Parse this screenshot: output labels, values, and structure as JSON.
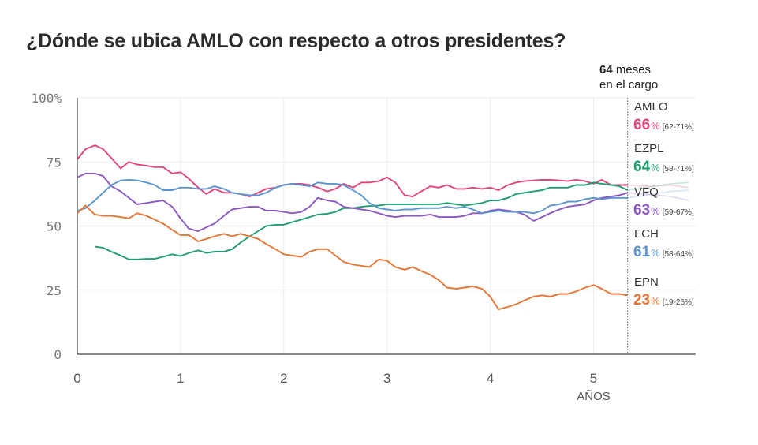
{
  "title": "¿Dónde se ubica AMLO con respecto a otros presidentes?",
  "months_label": {
    "number": "64",
    "line1": "meses",
    "line2": "en el cargo"
  },
  "chart_data": {
    "type": "line",
    "title": "¿Dónde se ubica AMLO con respecto a otros presidentes?",
    "xlabel": "AÑOS",
    "ylabel": "",
    "xlim": [
      0,
      6
    ],
    "ylim": [
      0,
      100
    ],
    "x_ticks": [
      0,
      1,
      2,
      3,
      4,
      5
    ],
    "y_ticks": [
      0,
      25,
      50,
      75,
      100
    ],
    "y_tick_labels": [
      "0",
      "25",
      "50",
      "75",
      "100%"
    ],
    "current_marker_x": 5.33,
    "grid": true,
    "legend": "right",
    "series": [
      {
        "name": "AMLO",
        "color": "#e0457b",
        "value": "66",
        "range": "[62-71%]",
        "x": [
          0,
          0.08,
          0.17,
          0.25,
          0.33,
          0.42,
          0.5,
          0.58,
          0.67,
          0.75,
          0.83,
          0.92,
          1.0,
          1.08,
          1.17,
          1.25,
          1.33,
          1.42,
          1.5,
          1.58,
          1.67,
          1.75,
          1.83,
          1.92,
          2.0,
          2.08,
          2.17,
          2.25,
          2.33,
          2.42,
          2.5,
          2.58,
          2.67,
          2.75,
          2.83,
          2.92,
          3.0,
          3.08,
          3.17,
          3.25,
          3.33,
          3.42,
          3.5,
          3.58,
          3.67,
          3.75,
          3.83,
          3.92,
          4.0,
          4.08,
          4.17,
          4.25,
          4.33,
          4.42,
          4.5,
          4.58,
          4.67,
          4.75,
          4.83,
          4.92,
          5.0,
          5.08,
          5.17,
          5.25,
          5.33
        ],
        "y": [
          76,
          80,
          81.5,
          80,
          76.5,
          72.5,
          75,
          74,
          73.5,
          73,
          73,
          70.5,
          71,
          68.5,
          65,
          62.5,
          64.5,
          63,
          63,
          62.5,
          61.5,
          63,
          64.5,
          65,
          66,
          66.5,
          66.5,
          66,
          65,
          63.5,
          64.5,
          66.5,
          65,
          67,
          67,
          67.5,
          69,
          67,
          62,
          61.5,
          63.5,
          65.5,
          65,
          66,
          64.5,
          64.5,
          65,
          64.5,
          65,
          64,
          66,
          67,
          67.5,
          67.8,
          68,
          68,
          67.8,
          67.5,
          68,
          67.5,
          66.5,
          68,
          66,
          66,
          66
        ]
      },
      {
        "name": "EZPL",
        "color": "#1f9e6e",
        "value": "64",
        "range": "[58-71%]",
        "x": [
          0.17,
          0.25,
          0.33,
          0.42,
          0.5,
          0.58,
          0.67,
          0.75,
          0.83,
          0.92,
          1.0,
          1.08,
          1.17,
          1.25,
          1.33,
          1.42,
          1.5,
          1.58,
          1.67,
          1.75,
          1.83,
          1.92,
          2.0,
          2.08,
          2.17,
          2.25,
          2.33,
          2.42,
          2.5,
          2.58,
          2.67,
          2.75,
          2.83,
          2.92,
          3.0,
          3.08,
          3.17,
          3.25,
          3.33,
          3.42,
          3.5,
          3.58,
          3.67,
          3.75,
          3.83,
          3.92,
          4.0,
          4.08,
          4.17,
          4.25,
          4.33,
          4.42,
          4.5,
          4.58,
          4.67,
          4.75,
          4.83,
          4.92,
          5.0,
          5.08,
          5.17,
          5.25,
          5.33
        ],
        "y": [
          42,
          41.5,
          40,
          38.5,
          37,
          37,
          37.2,
          37.2,
          38,
          39,
          38.3,
          39.5,
          40.5,
          39.5,
          40,
          40,
          41,
          43.5,
          46,
          48,
          50,
          50.5,
          50.5,
          51.5,
          52.5,
          53.5,
          54.5,
          54.8,
          55.5,
          57,
          57,
          57.5,
          57.8,
          58,
          58.5,
          58.5,
          58.5,
          58.5,
          58.5,
          58.5,
          58.5,
          59,
          58.5,
          58,
          58.5,
          59,
          60,
          60,
          61,
          62.5,
          63,
          63.5,
          64,
          65,
          65,
          65,
          66,
          66,
          67,
          66.5,
          66,
          65.5,
          64
        ]
      },
      {
        "name": "VFQ",
        "color": "#8b58c2",
        "value": "63",
        "range": "[59-67%]",
        "x": [
          0,
          0.08,
          0.17,
          0.25,
          0.33,
          0.42,
          0.5,
          0.58,
          0.67,
          0.75,
          0.83,
          0.92,
          1.0,
          1.08,
          1.17,
          1.25,
          1.33,
          1.42,
          1.5,
          1.58,
          1.67,
          1.75,
          1.83,
          1.92,
          2.0,
          2.08,
          2.17,
          2.25,
          2.33,
          2.42,
          2.5,
          2.58,
          2.67,
          2.75,
          2.83,
          2.92,
          3.0,
          3.08,
          3.17,
          3.25,
          3.33,
          3.42,
          3.5,
          3.58,
          3.67,
          3.75,
          3.83,
          3.92,
          4.0,
          4.08,
          4.17,
          4.25,
          4.33,
          4.42,
          4.5,
          4.58,
          4.67,
          4.75,
          4.83,
          4.92,
          5.0,
          5.08,
          5.17,
          5.25,
          5.33
        ],
        "y": [
          69,
          70.5,
          70.5,
          69.5,
          65.5,
          63.5,
          61,
          58.5,
          59,
          59.5,
          60,
          57.5,
          53,
          49,
          48,
          49.5,
          51,
          54,
          56.5,
          57,
          57.5,
          57.5,
          56,
          56,
          55.5,
          55,
          55.5,
          57.5,
          61,
          60,
          59.5,
          57.5,
          57,
          56.5,
          56,
          55,
          54,
          53.5,
          54,
          54,
          54,
          54.5,
          53.5,
          53.5,
          53.5,
          54,
          55,
          55,
          56,
          56.5,
          56,
          55.5,
          54.5,
          52,
          53.5,
          55,
          56.5,
          57.5,
          58,
          58.5,
          60,
          61,
          61.5,
          62,
          63
        ]
      },
      {
        "name": "FCH",
        "color": "#5b95d0",
        "value": "61",
        "range": "[58-64%]",
        "x": [
          0,
          0.08,
          0.17,
          0.25,
          0.33,
          0.42,
          0.5,
          0.58,
          0.67,
          0.75,
          0.83,
          0.92,
          1.0,
          1.08,
          1.17,
          1.25,
          1.33,
          1.42,
          1.5,
          1.58,
          1.67,
          1.75,
          1.83,
          1.92,
          2.0,
          2.08,
          2.17,
          2.25,
          2.33,
          2.42,
          2.5,
          2.58,
          2.67,
          2.75,
          2.83,
          2.92,
          3.0,
          3.08,
          3.17,
          3.25,
          3.33,
          3.42,
          3.5,
          3.58,
          3.67,
          3.75,
          3.83,
          3.92,
          4.0,
          4.08,
          4.17,
          4.25,
          4.33,
          4.42,
          4.5,
          4.58,
          4.67,
          4.75,
          4.83,
          4.92,
          5.0,
          5.08,
          5.17,
          5.25,
          5.33
        ],
        "y": [
          56,
          57,
          60,
          63,
          66,
          67.8,
          68,
          67.8,
          67,
          66,
          64,
          64,
          65,
          65,
          64.5,
          64.5,
          65.5,
          64.5,
          63,
          62.5,
          62,
          62,
          63,
          65,
          66,
          66.5,
          66,
          65.5,
          67,
          66.5,
          66.5,
          66,
          64,
          62,
          59,
          57,
          56.5,
          56,
          56.5,
          56.5,
          57,
          57,
          57,
          57.5,
          57,
          57.5,
          56.5,
          55,
          55.5,
          56,
          55.5,
          55.5,
          55.5,
          55,
          56,
          58,
          58.5,
          59.5,
          59.5,
          60.5,
          61,
          60.5,
          61,
          61,
          61
        ]
      },
      {
        "name": "EPN",
        "color": "#e67535",
        "value": "23",
        "range": "[19-26%]",
        "x": [
          0,
          0.08,
          0.17,
          0.25,
          0.33,
          0.42,
          0.5,
          0.58,
          0.67,
          0.75,
          0.83,
          0.92,
          1.0,
          1.08,
          1.17,
          1.25,
          1.33,
          1.42,
          1.5,
          1.58,
          1.67,
          1.75,
          1.83,
          1.92,
          2.0,
          2.08,
          2.17,
          2.25,
          2.33,
          2.42,
          2.5,
          2.58,
          2.67,
          2.75,
          2.83,
          2.92,
          3.0,
          3.08,
          3.17,
          3.25,
          3.33,
          3.42,
          3.5,
          3.58,
          3.67,
          3.75,
          3.83,
          3.92,
          4.0,
          4.08,
          4.17,
          4.25,
          4.33,
          4.42,
          4.5,
          4.58,
          4.67,
          4.75,
          4.83,
          4.92,
          5.0,
          5.08,
          5.17,
          5.25,
          5.33
        ],
        "y": [
          55,
          58,
          54.5,
          54,
          54,
          53.5,
          53,
          55,
          54,
          52.5,
          51,
          48.5,
          46.5,
          46.5,
          44,
          45,
          46,
          47,
          46,
          47,
          46,
          45,
          43,
          41,
          39,
          38.5,
          38,
          40,
          41,
          41,
          38.5,
          36,
          35,
          34.5,
          34,
          37,
          36.5,
          34,
          33,
          34,
          32.5,
          31,
          29,
          26,
          25.5,
          26,
          26.5,
          25.5,
          22.5,
          17.5,
          18.5,
          19.5,
          21,
          22.5,
          23,
          22.5,
          23.5,
          23.5,
          24.5,
          26,
          27,
          25.5,
          23.5,
          23.5,
          23
        ]
      }
    ],
    "faded_lines": [
      {
        "series": "AMLO",
        "x": [
          5.33,
          5.5,
          5.75,
          5.92
        ],
        "y": [
          66,
          65.5,
          66,
          65
        ]
      },
      {
        "series": "EZPL",
        "x": [
          5.33,
          5.5,
          5.75,
          5.92
        ],
        "y": [
          64,
          65,
          66.5,
          67
        ]
      },
      {
        "series": "VFQ",
        "x": [
          5.33,
          5.5,
          5.75,
          5.92
        ],
        "y": [
          63,
          62.5,
          61.5,
          60
        ]
      },
      {
        "series": "FCH",
        "x": [
          5.33,
          5.5,
          5.75,
          5.92
        ],
        "y": [
          61,
          62,
          63.5,
          64
        ]
      }
    ]
  }
}
